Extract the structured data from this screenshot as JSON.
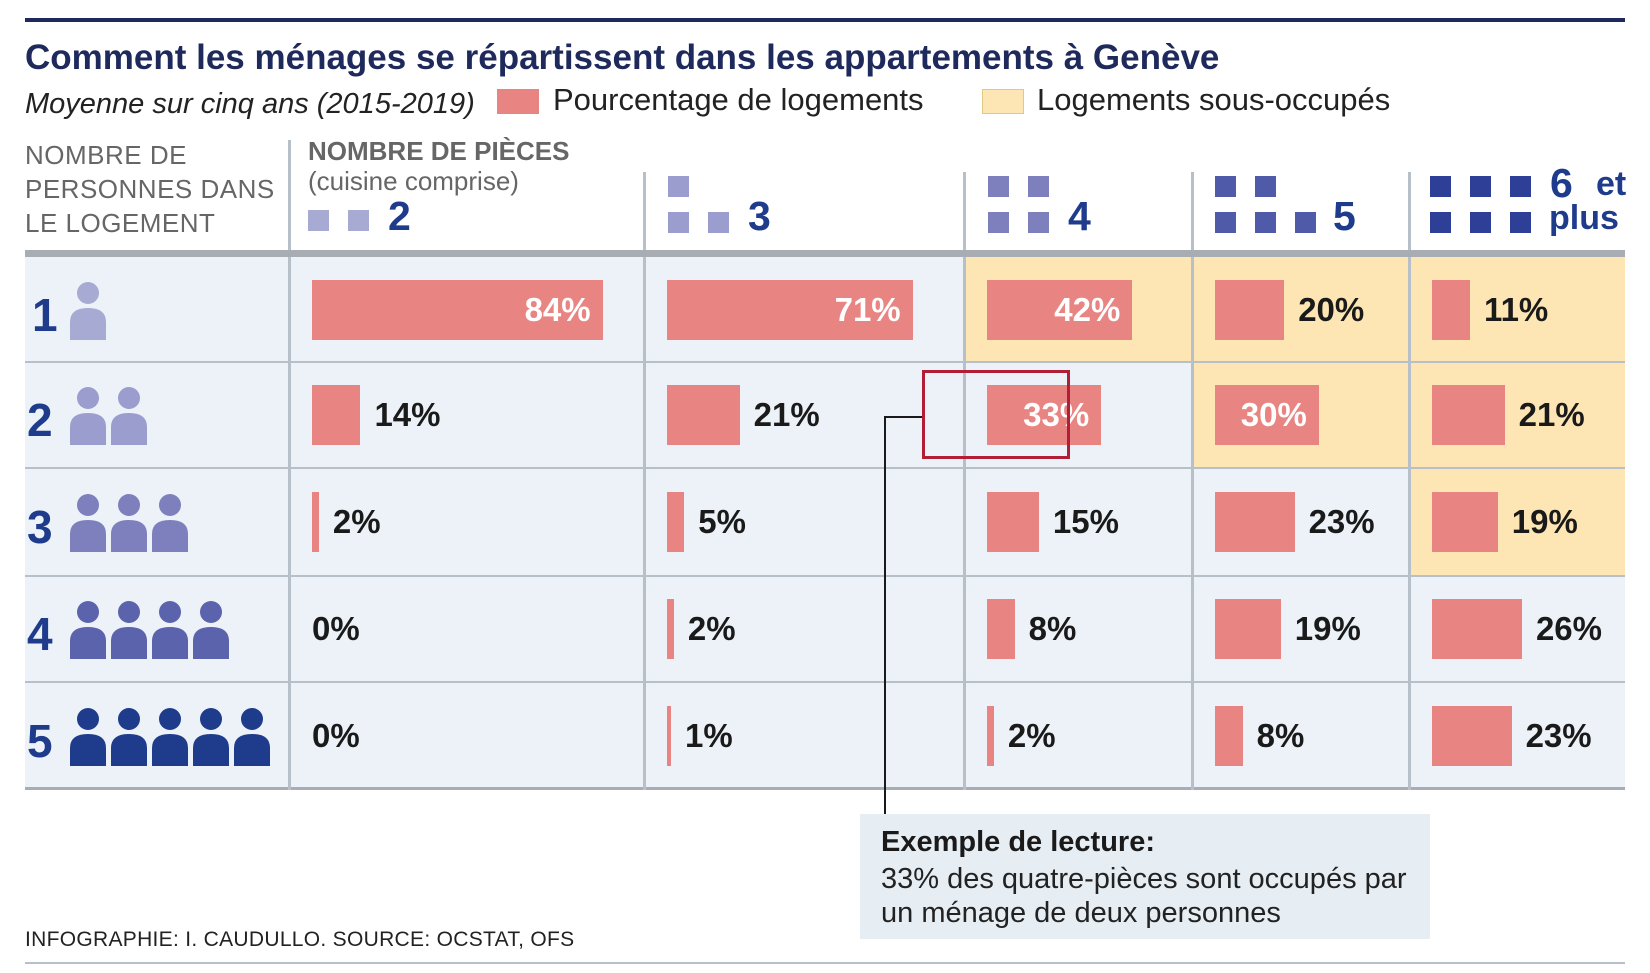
{
  "title": "Comment les ménages se répartissent dans les appartements à Genève",
  "subtitle": "Moyenne sur cinq ans (2015-2019)",
  "legend": {
    "pct": "Pourcentage de logements",
    "under": "Logements sous-occupés"
  },
  "corner_label": "NOMBRE DE PERSONNES DANS LE LOGEMENT",
  "pieces_header": "NOMBRE DE PIÈCES",
  "pieces_sub": "(cuisine comprise)",
  "last_col_line1": "et",
  "last_col_line2": "plus",
  "annotation": {
    "title": "Exemple de lecture:",
    "text": "33% des quatre-pièces sont occupés par un ménage de deux personnes"
  },
  "credit": "INFOGRAPHIE: I. CAUDULLO. SOURCE: OCSTAT, OFS",
  "colors": {
    "bar": "#e88582",
    "under_occupied": "#fde6b3",
    "table_bg": "#ecf2f7",
    "navy": "#1f2a5c",
    "blue": "#1f3b8c",
    "highlight_border": "#b01f35"
  },
  "chart_data": {
    "type": "table",
    "title": "Comment les ménages se répartissent dans les appartements à Genève",
    "subtitle": "Moyenne sur cinq ans (2015-2019)",
    "column_axis_label": "NOMBRE DE PIÈCES (cuisine comprise)",
    "row_axis_label": "NOMBRE DE PERSONNES DANS LE LOGEMENT",
    "columns": [
      "2",
      "3",
      "4",
      "5",
      "6"
    ],
    "rows": [
      "1",
      "2",
      "3",
      "4",
      "5"
    ],
    "unit": "%",
    "values": [
      [
        84,
        71,
        42,
        20,
        11
      ],
      [
        14,
        21,
        33,
        30,
        21
      ],
      [
        2,
        5,
        15,
        23,
        19
      ],
      [
        0,
        2,
        8,
        19,
        26
      ],
      [
        0,
        1,
        2,
        8,
        23
      ]
    ],
    "under_occupied": [
      [
        false,
        false,
        true,
        true,
        true
      ],
      [
        false,
        false,
        false,
        true,
        true
      ],
      [
        false,
        false,
        false,
        false,
        true
      ],
      [
        false,
        false,
        false,
        false,
        false
      ],
      [
        false,
        false,
        false,
        false,
        false
      ]
    ],
    "highlighted_cell": {
      "row": "2",
      "column": "4"
    }
  }
}
